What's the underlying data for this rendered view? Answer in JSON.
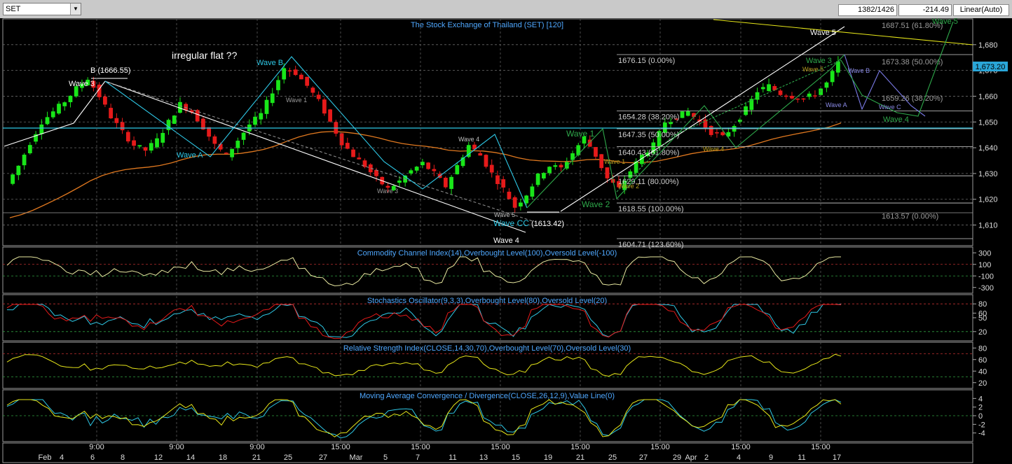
{
  "toolbar": {
    "symbol": "SET",
    "dropdown_glyph": "▼",
    "bar_count": "1382/1426",
    "offset": "-214.49",
    "scale_mode": "Linear(Auto)"
  },
  "colors": {
    "background": "#000000",
    "panel_border": "#aaaaaa",
    "bull_candle": "#19e619",
    "bear_candle": "#e61a1a",
    "moving_average": "#e0781f",
    "title_text": "#4fa8ff",
    "cyan_wave": "#2ec8e6",
    "yellow_line": "#e6e619",
    "green_wave": "#2ea84a",
    "price_box": "#2aa6d8"
  },
  "chart_data": [
    {
      "type": "candlestick",
      "title": "The Stock Exchange of Thailand (SET) [120]",
      "y_ticks": [
        1610,
        1620,
        1630,
        1640,
        1650,
        1660,
        1670,
        1680
      ],
      "ylim": [
        1602,
        1690
      ],
      "last_price": "1,673.20",
      "x_ticks": [
        "9:00",
        "9:00",
        "9:00",
        "15:00",
        "15:00",
        "15:00",
        "15:00",
        "15:00",
        "15:00",
        "15:00"
      ],
      "date_labels": [
        "Feb",
        "4",
        "6",
        "8",
        "12",
        "14",
        "18",
        "21",
        "25",
        "27",
        "Mar",
        "5",
        "7",
        "11",
        "13",
        "15",
        "19",
        "21",
        "25",
        "27",
        "29",
        "Apr",
        "2",
        "4",
        "9",
        "11",
        "17"
      ],
      "close_path": [
        1626,
        1633,
        1642,
        1650,
        1654,
        1658,
        1663,
        1667,
        1660,
        1652,
        1646,
        1641,
        1639,
        1643,
        1650,
        1657,
        1654,
        1648,
        1641,
        1637,
        1643,
        1649,
        1653,
        1662,
        1671,
        1669,
        1664,
        1658,
        1650,
        1642,
        1637,
        1633,
        1628,
        1624,
        1627,
        1631,
        1634,
        1630,
        1625,
        1633,
        1641,
        1637,
        1630,
        1624,
        1617,
        1622,
        1629,
        1633,
        1632,
        1638,
        1644,
        1637,
        1628,
        1624,
        1631,
        1637,
        1641,
        1650,
        1652,
        1654,
        1650,
        1646,
        1644,
        1649,
        1655,
        1662,
        1664,
        1661,
        1660,
        1659,
        1661,
        1665,
        1673
      ],
      "annotations": {
        "irregular": "irregular flat ??",
        "b_label": "B (1666.55)",
        "wave3_left": "Wave 3",
        "wave_b": "Wave B",
        "wave_a": "Wave A",
        "wave1_mid": "Wave 1",
        "wave3_mid": "Wave 3",
        "wave4_mid": "Wave 4",
        "wave5_low": "Wave 5",
        "wave_cc": "Wave CC",
        "wave_cc_val": "(1613.42)",
        "wave4_bottom": "Wave 4",
        "wave1_green": "Wave 1",
        "wave2_green": "Wave 2",
        "wave5_top": "Wave 5",
        "wave3_right": "Wave 3",
        "wave5_right": "Wave 5",
        "wave_b_right": "Wave B",
        "wave_a_right": "Wave A",
        "wave4_right": "Wave 4",
        "wave5_proj": "Wave 5",
        "wave4_small": "Wave 4",
        "wave2_small": "Wave 2",
        "wave1_small": "Wave 1",
        "wave_c_small": "Wave C"
      },
      "fib_levels": [
        {
          "label": "1676.15 (0.00%)",
          "value": 1676.15
        },
        {
          "label": "1654.28 (38.20%)",
          "value": 1654.28
        },
        {
          "label": "1647.35 (50.00%)",
          "value": 1647.35
        },
        {
          "label": "1640.43 (61.80%)",
          "value": 1640.43
        },
        {
          "label": "1629.11 (80.00%)",
          "value": 1629.11
        },
        {
          "label": "1618.55 (100.00%)",
          "value": 1618.55
        },
        {
          "label": "1604.71 (123.60%)",
          "value": 1604.71
        }
      ],
      "fib_right": [
        {
          "label": "1687.51 (61.80%)",
          "value": 1687.51
        },
        {
          "label": "1673.38 (50.00%)",
          "value": 1673.38
        },
        {
          "label": "1659.26 (38.20%)",
          "value": 1659.26
        },
        {
          "label": "1613.57 (0.00%)",
          "value": 1613.57
        }
      ]
    },
    {
      "type": "line",
      "title": "Commodity Channel Index(14),Overbought Level(100),Oversold Level(-100)",
      "y_ticks": [
        "300",
        "100",
        "-100",
        "-300"
      ],
      "ylim": [
        -400,
        400
      ],
      "levels": [
        100,
        -100
      ]
    },
    {
      "type": "line",
      "title": "Stochastics Oscillator(9,3,3),Overbought Level(80),Oversold Level(20)",
      "y_ticks": [
        "80",
        "60",
        "50",
        "20"
      ],
      "ylim": [
        0,
        100
      ],
      "levels": [
        80,
        20
      ]
    },
    {
      "type": "line",
      "title": "Relative Strength Index(CLOSE,14,30,70),Overbought Level(70),Oversold Level(30)",
      "y_ticks": [
        "80",
        "60",
        "40",
        "20"
      ],
      "ylim": [
        10,
        90
      ],
      "levels": [
        70,
        30
      ]
    },
    {
      "type": "line",
      "title": "Moving Average Convergence / Divergence(CLOSE,26,12,9),Value Line(0)",
      "y_ticks": [
        "4",
        "2",
        "0",
        "-2",
        "-4"
      ],
      "ylim": [
        -6,
        6
      ],
      "levels": [
        0
      ]
    }
  ]
}
